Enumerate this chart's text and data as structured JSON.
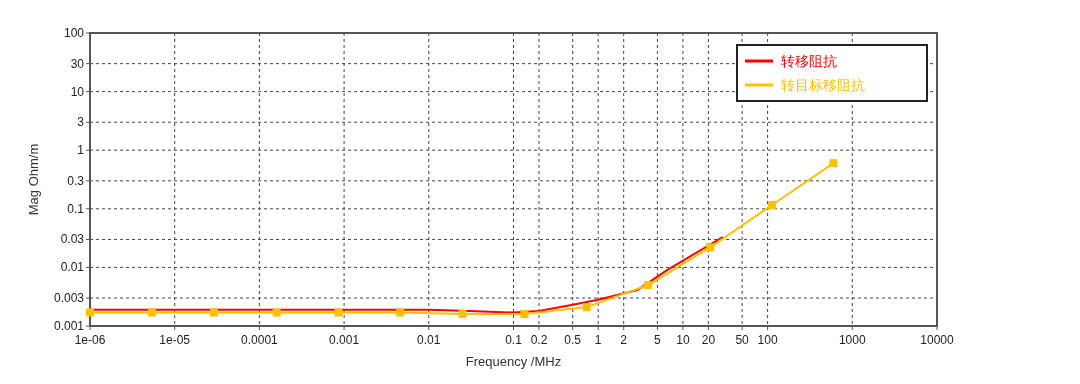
{
  "chart_data": {
    "type": "line",
    "xlabel": "Frequency /MHz",
    "ylabel": "Mag Ohm/m",
    "log": "xy",
    "grid": true,
    "legend": "top right",
    "line_style": "solid",
    "xlim": [
      1e-06,
      10000
    ],
    "ylim": [
      0.001,
      100
    ],
    "xticks": [
      {
        "value": 1e-06,
        "label": "1e-06"
      },
      {
        "value": 1e-05,
        "label": "1e-05"
      },
      {
        "value": 0.0001,
        "label": "0.0001"
      },
      {
        "value": 0.001,
        "label": "0.001"
      },
      {
        "value": 0.01,
        "label": "0.01"
      },
      {
        "value": 0.1,
        "label": "0.1"
      },
      0.2,
      0.5,
      1,
      2,
      5,
      10,
      20,
      50,
      100,
      1000,
      10000
    ],
    "yticks": [
      0.001,
      0.003,
      0.01,
      0.03,
      0.1,
      0.3,
      1,
      3,
      10,
      30,
      100
    ],
    "series": [
      {
        "name": "转移阻抗",
        "color": "#ff0000",
        "marker": "none",
        "x": [
          1e-06,
          0.01,
          0.03,
          0.1,
          0.2,
          0.5,
          1,
          2.9,
          6.5,
          29.6
        ],
        "values": [
          0.0019,
          0.0019,
          0.0018,
          0.0017,
          0.0018,
          0.0023,
          0.0028,
          0.0041,
          0.009,
          0.033
        ]
      },
      {
        "name": "转目标移阻抗",
        "color": "#ffc000",
        "marker": "square",
        "x": [
          1e-06,
          5.4e-06,
          2.9e-05,
          0.00016,
          0.00086,
          0.0046,
          0.025,
          0.135,
          0.73,
          3.9,
          21,
          113,
          600
        ],
        "values": [
          0.0017,
          0.0017,
          0.0017,
          0.0017,
          0.0017,
          0.0017,
          0.0016,
          0.0016,
          0.0021,
          0.005,
          0.022,
          0.116,
          0.6
        ]
      }
    ]
  }
}
